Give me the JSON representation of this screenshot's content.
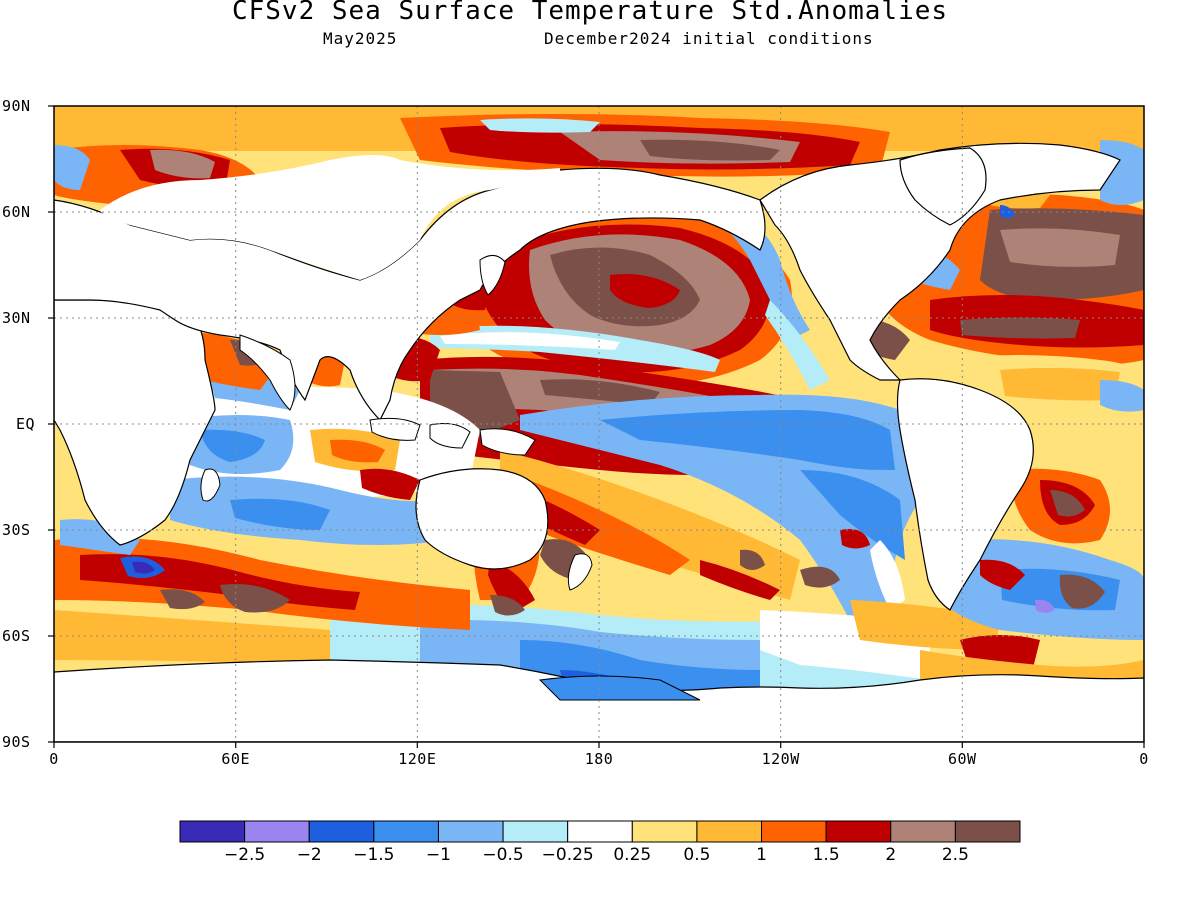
{
  "title": "CFSv2 Sea Surface Temperature Std.Anomalies",
  "subtitle_left": "May2025",
  "subtitle_right": "December2024 initial conditions",
  "lat_labels": [
    "90N",
    "60N",
    "30N",
    "EQ",
    "30S",
    "60S",
    "90S"
  ],
  "lon_labels": [
    "0",
    "60E",
    "120E",
    "180",
    "120W",
    "60W",
    "0"
  ],
  "colorbar": {
    "colors": [
      "#3a2ab8",
      "#9a85f0",
      "#1e5fe0",
      "#3b8fef",
      "#7ab6f5",
      "#b4ecf7",
      "#ffffff",
      "#ffe27a",
      "#ffb934",
      "#ff6200",
      "#c00000",
      "#ae8277",
      "#7a5048"
    ],
    "labels": [
      "−2.5",
      "−2",
      "−1.5",
      "−1",
      "−0.5",
      "−0.25",
      "0.25",
      "0.5",
      "1",
      "1.5",
      "2",
      "2.5"
    ]
  },
  "map_colors": {
    "land": "#ffffff",
    "coast": "#000000",
    "grid": "#888888"
  }
}
